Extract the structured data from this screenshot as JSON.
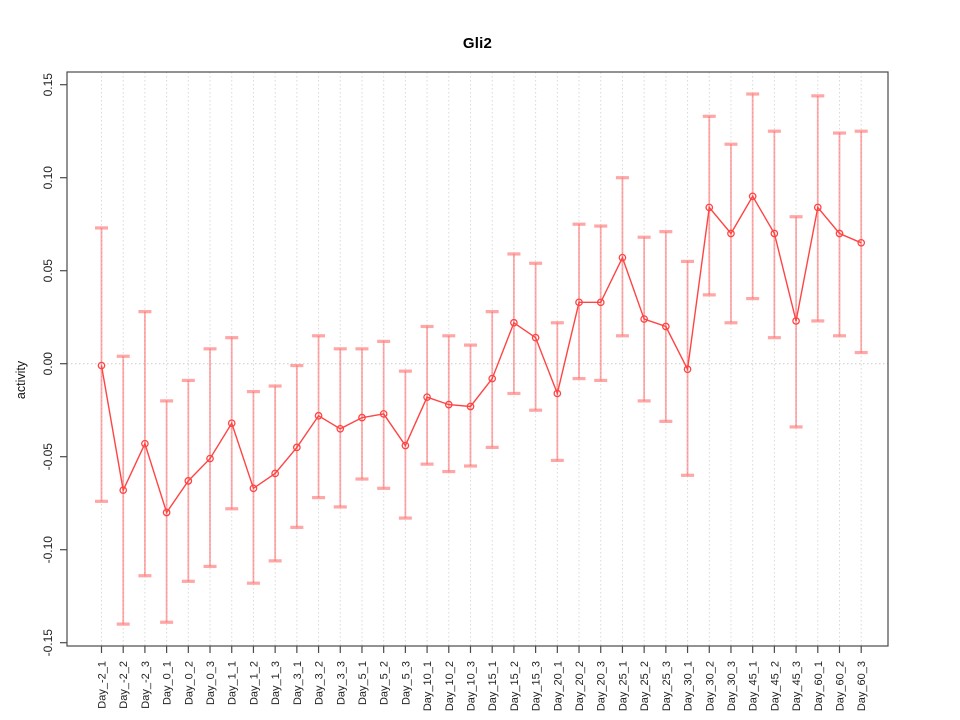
{
  "chart_data": {
    "type": "line",
    "title": "Gli2",
    "xlabel": "",
    "ylabel": "activity",
    "ylim": [
      -0.15,
      0.15
    ],
    "yticks": [
      0.15,
      0.1,
      0.05,
      0.0,
      -0.05,
      -0.1,
      -0.15
    ],
    "ytick_labels": [
      "0.15",
      "0.10",
      "0.05",
      "0.00",
      "-0.05",
      "-0.10",
      "-0.15"
    ],
    "grid": "dotted vertical line at every category; dotted horizontal line at y=0",
    "legend": "none",
    "marker": "open-circle",
    "categories": [
      "Day_-2_1",
      "Day_-2_2",
      "Day_-2_3",
      "Day_0_1",
      "Day_0_2",
      "Day_0_3",
      "Day_1_1",
      "Day_1_2",
      "Day_1_3",
      "Day_3_1",
      "Day_3_2",
      "Day_3_3",
      "Day_5_1",
      "Day_5_2",
      "Day_5_3",
      "Day_10_1",
      "Day_10_2",
      "Day_10_3",
      "Day_15_1",
      "Day_15_2",
      "Day_15_3",
      "Day_20_1",
      "Day_20_2",
      "Day_20_3",
      "Day_25_1",
      "Day_25_2",
      "Day_25_3",
      "Day_30_1",
      "Day_30_2",
      "Day_30_3",
      "Day_45_1",
      "Day_45_2",
      "Day_45_3",
      "Day_60_1",
      "Day_60_2",
      "Day_60_3"
    ],
    "series": [
      {
        "name": "mean activity",
        "values": [
          -0.001,
          -0.068,
          -0.043,
          -0.08,
          -0.063,
          -0.051,
          -0.032,
          -0.067,
          -0.059,
          -0.045,
          -0.028,
          -0.035,
          -0.029,
          -0.027,
          -0.044,
          -0.018,
          -0.022,
          -0.023,
          -0.008,
          0.022,
          0.014,
          -0.016,
          0.033,
          0.033,
          0.057,
          0.024,
          0.02,
          -0.003,
          0.084,
          0.07,
          0.09,
          0.07,
          0.023,
          0.084,
          0.07,
          0.065
        ]
      },
      {
        "name": "error bar upper end",
        "values": [
          0.073,
          0.004,
          0.028,
          -0.02,
          -0.009,
          0.008,
          0.014,
          -0.015,
          -0.012,
          -0.001,
          0.015,
          0.008,
          0.008,
          0.012,
          -0.004,
          0.02,
          0.015,
          0.01,
          0.028,
          0.059,
          0.054,
          0.022,
          0.075,
          0.074,
          0.1,
          0.068,
          0.071,
          0.055,
          0.133,
          0.118,
          0.145,
          0.125,
          0.079,
          0.144,
          0.124,
          0.125
        ]
      },
      {
        "name": "error bar lower end",
        "values": [
          -0.074,
          -0.14,
          -0.114,
          -0.139,
          -0.117,
          -0.109,
          -0.078,
          -0.118,
          -0.106,
          -0.088,
          -0.072,
          -0.077,
          -0.062,
          -0.067,
          -0.083,
          -0.054,
          -0.058,
          -0.055,
          -0.045,
          -0.016,
          -0.025,
          -0.052,
          -0.008,
          -0.009,
          0.015,
          -0.02,
          -0.031,
          -0.06,
          0.037,
          0.022,
          0.035,
          0.014,
          -0.034,
          0.023,
          0.015,
          0.006
        ]
      }
    ],
    "colors": {
      "series_line": "#ff4444",
      "marker": "#ff4444",
      "error_bar": "#ff5555",
      "error_bar_cap": "#ff7777",
      "grid": "#d9d9d9",
      "zero_line": "#cccccc",
      "axis": "#4a4a4a",
      "text": "#222222",
      "background": "#ffffff"
    }
  }
}
